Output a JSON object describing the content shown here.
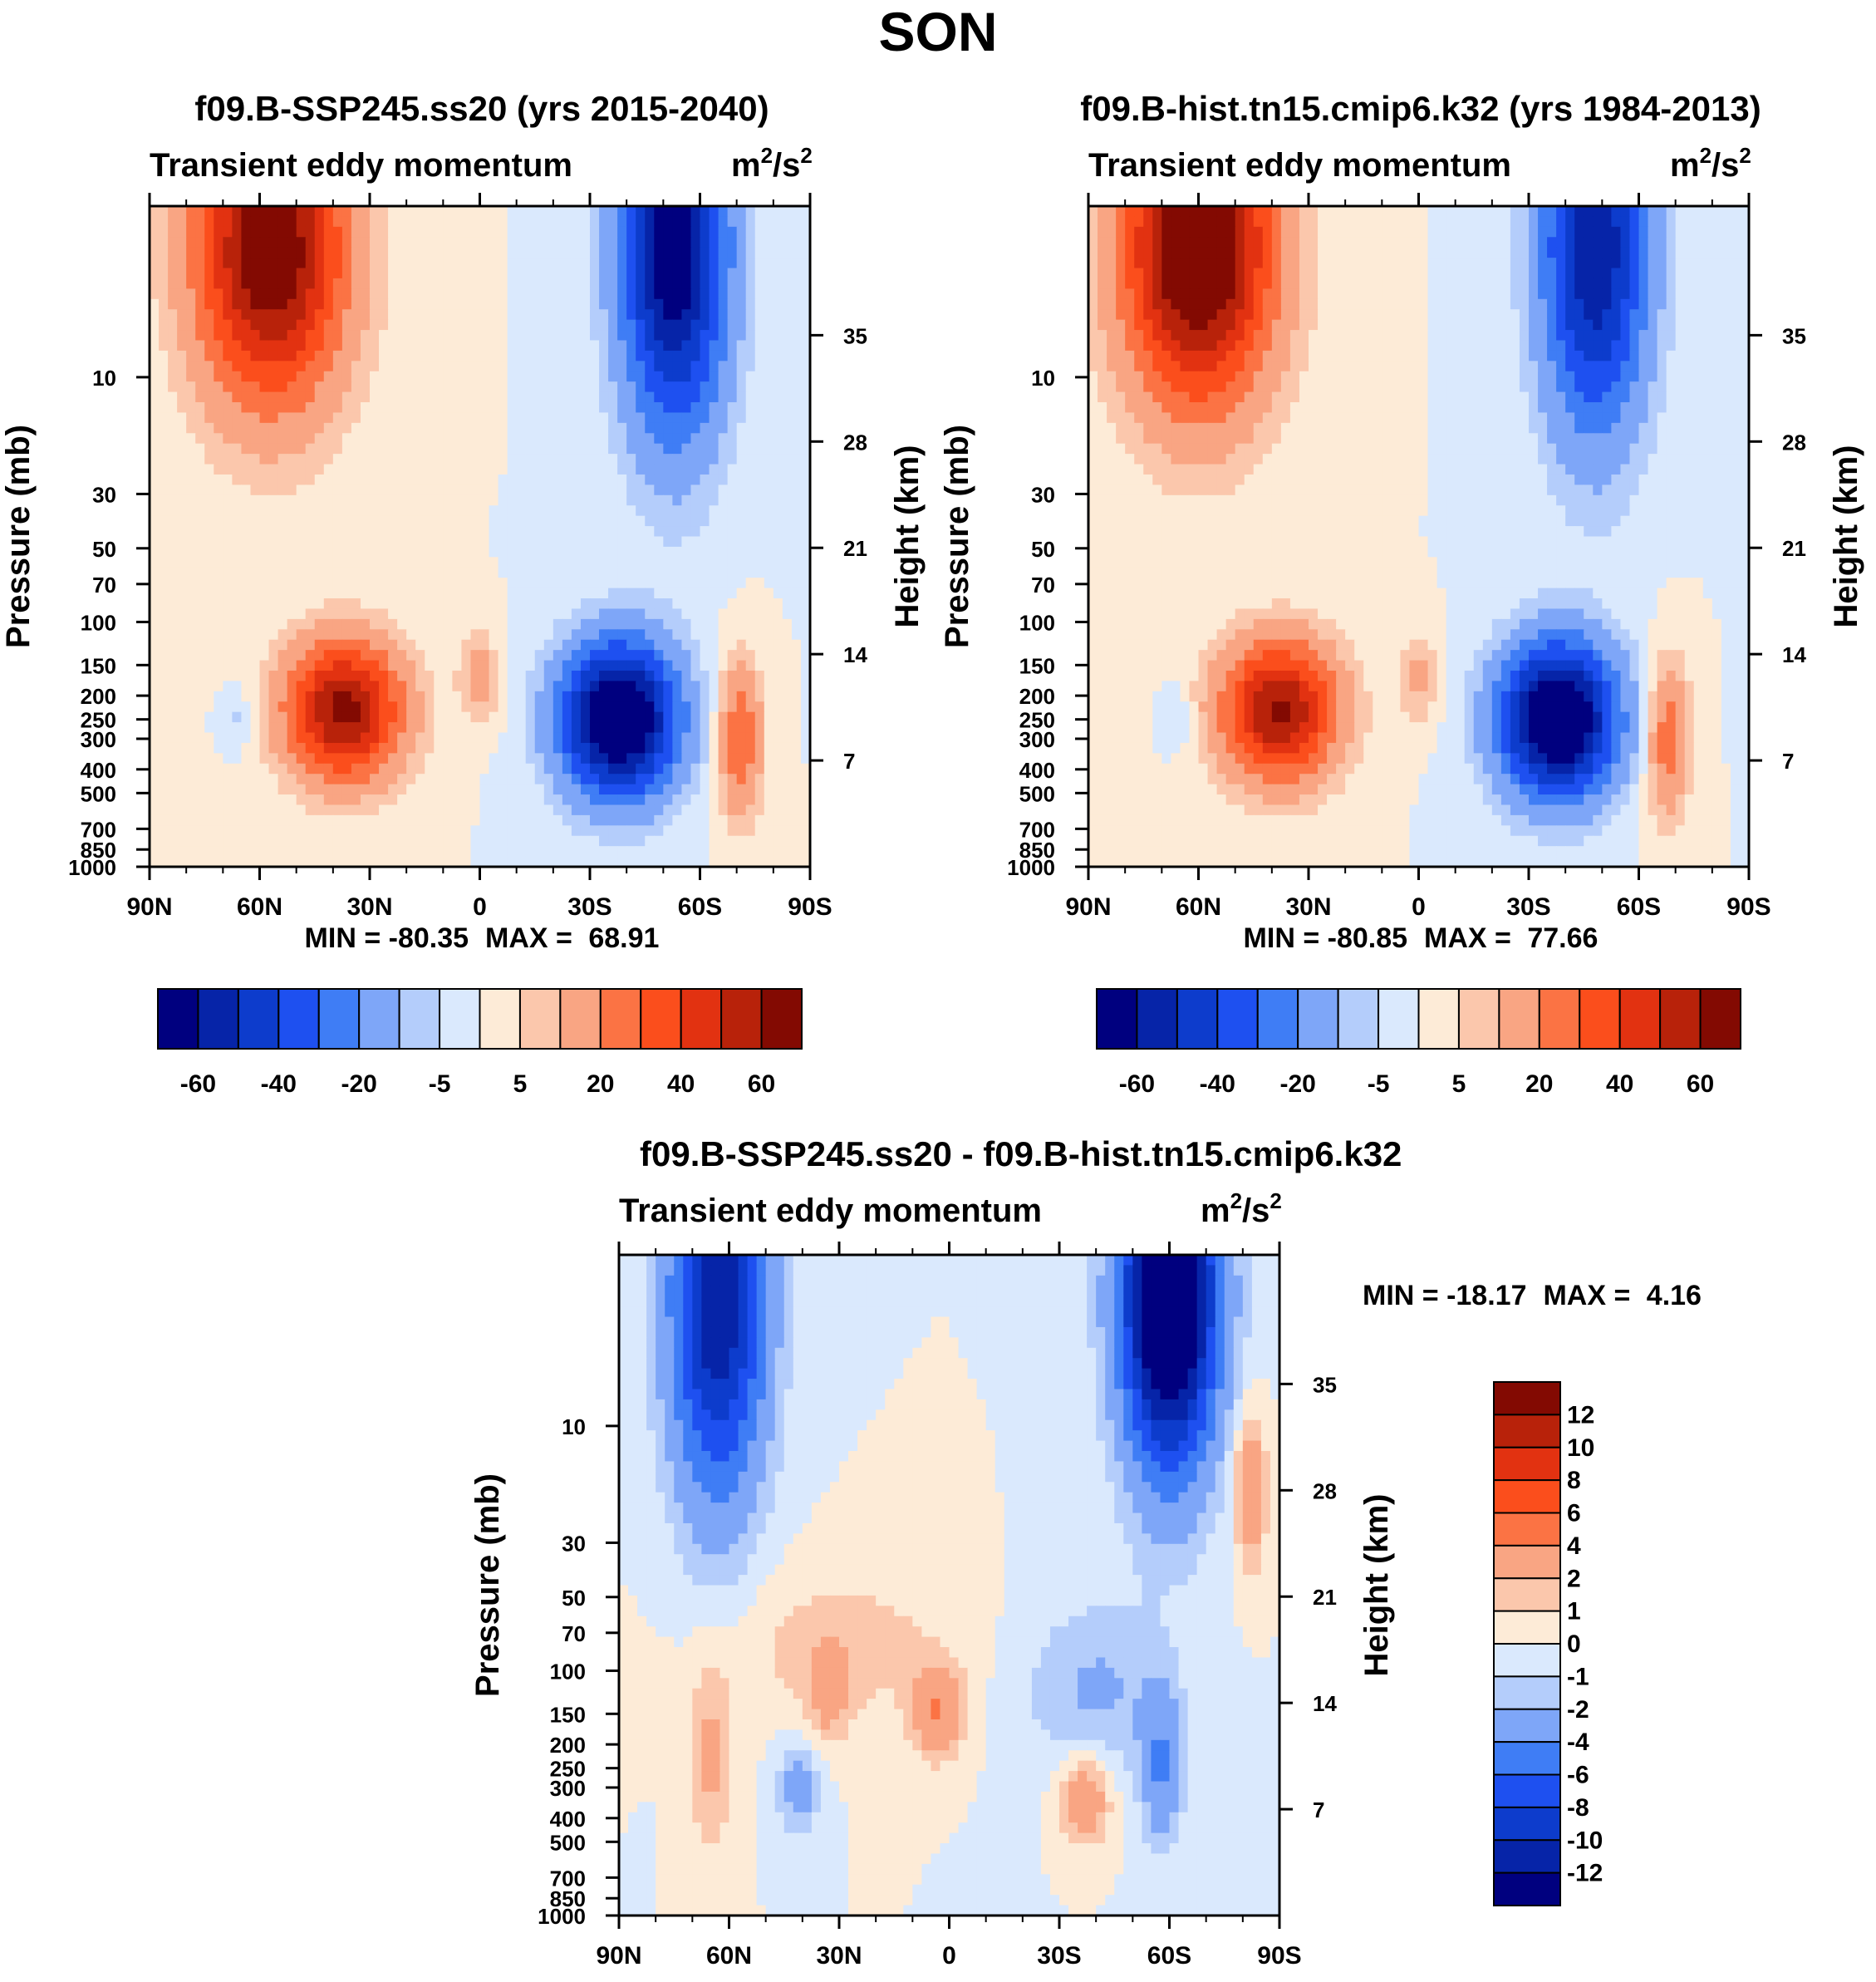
{
  "figure": {
    "title": "SON"
  },
  "colors": {
    "abs_fill": [
      "#00007f",
      "#0624a8",
      "#0d3ccc",
      "#1e50f0",
      "#3f7df5",
      "#7ea6f8",
      "#b4cdfb",
      "#dae9fd",
      "#fdebd7",
      "#fbc7ac",
      "#f9a583",
      "#fb7344",
      "#fb4e1c",
      "#e23211",
      "#b8220a",
      "#830a02"
    ],
    "diff_fill": [
      "#00007f",
      "#0624a8",
      "#0d3ccc",
      "#1e50f0",
      "#3f7df5",
      "#7ea6f8",
      "#b4cdfb",
      "#dae9fd",
      "#fdebd7",
      "#fbc7ac",
      "#f9a583",
      "#fb7344",
      "#fb4e1c",
      "#e23211",
      "#b8220a",
      "#830a02"
    ]
  },
  "chart_data": [
    {
      "id": "panel1",
      "type": "heatmap",
      "title": "f09.B-SSP245.ss20 (yrs 2015-2040)",
      "variable": "Transient eddy momentum",
      "units": {
        "base": "m",
        "sup1": "2",
        "mid": "/s",
        "sup2": "2"
      },
      "ylabel": "Pressure (mb)",
      "ylabel_right": "Height (km)",
      "x_ticks": [
        "90N",
        "60N",
        "30N",
        "0",
        "30S",
        "60S",
        "90S"
      ],
      "x_range": [
        90,
        -90
      ],
      "pressure_ticks": [
        10,
        30,
        50,
        70,
        100,
        150,
        200,
        250,
        300,
        400,
        500,
        700,
        850,
        1000
      ],
      "height_ticks": [
        35,
        28,
        21,
        14,
        7
      ],
      "stats": {
        "min_label": "MIN = ",
        "min": "-80.35",
        "max_label": "MAX = ",
        "max": "68.91"
      },
      "colorbar": {
        "orientation": "horizontal",
        "levels": [
          -70,
          -60,
          -50,
          -40,
          -30,
          -20,
          -10,
          -5,
          0,
          5,
          10,
          20,
          30,
          40,
          50,
          60
        ],
        "labels": [
          "-60",
          "-40",
          "-20",
          "-5",
          "5",
          "20",
          "40",
          "60"
        ]
      },
      "features": [
        {
          "lat": 57,
          "p": 3,
          "amp": 72,
          "sx": 14,
          "sy": 1.0
        },
        {
          "lat": 37,
          "p": 230,
          "amp": 64,
          "sx": 11,
          "sy": 0.45
        },
        {
          "lat": 0,
          "p": 170,
          "amp": 14,
          "sx": 4,
          "sy": 0.3
        },
        {
          "lat": 66,
          "p": 250,
          "amp": -7,
          "sx": 3,
          "sy": 0.2
        },
        {
          "lat": -53,
          "p": 3,
          "amp": -70,
          "sx": 10,
          "sy": 1.2
        },
        {
          "lat": -38,
          "p": 250,
          "amp": -82,
          "sx": 11,
          "sy": 0.5
        },
        {
          "lat": -71,
          "p": 300,
          "amp": 30,
          "sx": 4,
          "sy": 0.5
        }
      ]
    },
    {
      "id": "panel2",
      "type": "heatmap",
      "title": "f09.B-hist.tn15.cmip6.k32 (yrs 1984-2013)",
      "variable": "Transient eddy momentum",
      "units": {
        "base": "m",
        "sup1": "2",
        "mid": "/s",
        "sup2": "2"
      },
      "ylabel": "Pressure (mb)",
      "ylabel_right": "Height (km)",
      "x_ticks": [
        "90N",
        "60N",
        "30N",
        "0",
        "30S",
        "60S",
        "90S"
      ],
      "x_range": [
        90,
        -90
      ],
      "pressure_ticks": [
        10,
        30,
        50,
        70,
        100,
        150,
        200,
        250,
        300,
        400,
        500,
        700,
        850,
        1000
      ],
      "height_ticks": [
        35,
        28,
        21,
        14,
        7
      ],
      "stats": {
        "min_label": "MIN = ",
        "min": "-80.85",
        "max_label": "MAX = ",
        "max": "77.66"
      },
      "colorbar": {
        "orientation": "horizontal",
        "levels": [
          -70,
          -60,
          -50,
          -40,
          -30,
          -20,
          -10,
          -5,
          0,
          5,
          10,
          20,
          30,
          40,
          50,
          60
        ],
        "labels": [
          "-60",
          "-40",
          "-20",
          "-5",
          "5",
          "20",
          "40",
          "60"
        ]
      },
      "features": [
        {
          "lat": 60,
          "p": 3,
          "amp": 80,
          "sx": 14,
          "sy": 1.0
        },
        {
          "lat": 38,
          "p": 230,
          "amp": 62,
          "sx": 11,
          "sy": 0.45
        },
        {
          "lat": 0,
          "p": 170,
          "amp": 12,
          "sx": 4,
          "sy": 0.3
        },
        {
          "lat": 66,
          "p": 250,
          "amp": -7,
          "sx": 3,
          "sy": 0.2
        },
        {
          "lat": -48,
          "p": 3,
          "amp": -60,
          "sx": 10,
          "sy": 1.2
        },
        {
          "lat": -38,
          "p": 250,
          "amp": -82,
          "sx": 11,
          "sy": 0.5
        },
        {
          "lat": -68,
          "p": 300,
          "amp": 27,
          "sx": 4,
          "sy": 0.5
        }
      ]
    },
    {
      "id": "panel3",
      "type": "heatmap",
      "title": "f09.B-SSP245.ss20 - f09.B-hist.tn15.cmip6.k32",
      "variable": "Transient eddy momentum",
      "units": {
        "base": "m",
        "sup1": "2",
        "mid": "/s",
        "sup2": "2"
      },
      "ylabel": "Pressure (mb)",
      "ylabel_right": "Height (km)",
      "x_ticks": [
        "90N",
        "60N",
        "30N",
        "0",
        "30S",
        "60S",
        "90S"
      ],
      "x_range": [
        90,
        -90
      ],
      "pressure_ticks": [
        10,
        30,
        50,
        70,
        100,
        150,
        200,
        250,
        300,
        400,
        500,
        700,
        850,
        1000
      ],
      "height_ticks": [
        35,
        28,
        21,
        14,
        7
      ],
      "stats": {
        "min_label": "MIN = ",
        "min": "-18.17",
        "max_label": "MAX = ",
        "max": "4.16"
      },
      "colorbar": {
        "orientation": "vertical",
        "levels": [
          -14,
          -12,
          -10,
          -8,
          -6,
          -4,
          -2,
          -1,
          0,
          1,
          2,
          4,
          6,
          8,
          10,
          12
        ],
        "labels": [
          "12",
          "10",
          "8",
          "6",
          "4",
          "2",
          "1",
          "0",
          "-1",
          "-2",
          "-4",
          "-6",
          "-8",
          "-10",
          "-12"
        ]
      },
      "features": [
        {
          "lat": 63,
          "p": 3,
          "amp": -12,
          "sx": 9,
          "sy": 1.3
        },
        {
          "lat": -60,
          "p": 3,
          "amp": -18,
          "sx": 9,
          "sy": 1.1
        },
        {
          "lat": -58,
          "p": 250,
          "amp": -4,
          "sx": 4,
          "sy": 0.5
        },
        {
          "lat": -40,
          "p": 120,
          "amp": -2.2,
          "sx": 14,
          "sy": 0.6
        },
        {
          "lat": -82,
          "p": 18,
          "amp": 4,
          "sx": 3,
          "sy": 0.5
        },
        {
          "lat": 65,
          "p": 230,
          "amp": 2.5,
          "sx": 4,
          "sy": 0.6
        },
        {
          "lat": 41,
          "p": 300,
          "amp": -3,
          "sx": 4,
          "sy": 0.3
        },
        {
          "lat": 3,
          "p": 150,
          "amp": 3.8,
          "sx": 5,
          "sy": 0.3
        },
        {
          "lat": -37,
          "p": 330,
          "amp": 3.8,
          "sx": 5,
          "sy": 0.3
        },
        {
          "lat": 33,
          "p": 130,
          "amp": 2.2,
          "sx": 4,
          "sy": 0.3
        },
        {
          "lat": 30,
          "p": 80,
          "amp": 1.6,
          "sx": 22,
          "sy": 0.5
        }
      ]
    }
  ]
}
